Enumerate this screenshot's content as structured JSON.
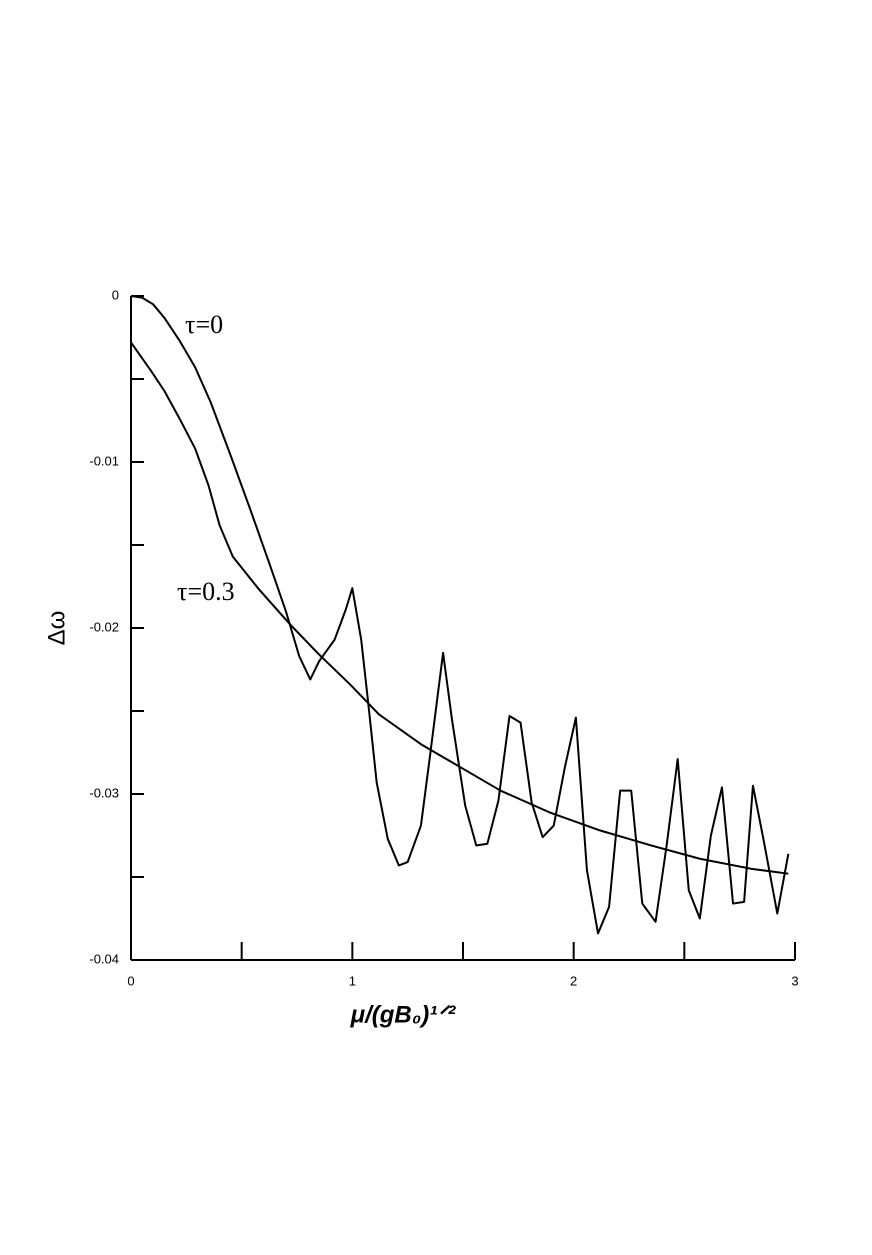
{
  "chart_data": {
    "type": "line",
    "xlabel": "μ/(gB₀)¹ᐟ²",
    "ylabel": "Δω",
    "xlim": [
      0,
      3
    ],
    "ylim": [
      -0.04,
      0
    ],
    "xticks": [
      0,
      1,
      2,
      3
    ],
    "xminorticks": [
      0.5,
      1.5,
      2.5
    ],
    "yticks": [
      0,
      -0.01,
      -0.02,
      -0.03,
      -0.04
    ],
    "yminorticks": [
      -0.005,
      -0.015,
      -0.025,
      -0.035
    ],
    "series": [
      {
        "name": "τ=0",
        "color": "#000000",
        "x": [
          0,
          0.05,
          0.1,
          0.15,
          0.22,
          0.29,
          0.36,
          0.45,
          0.54,
          0.63,
          0.7,
          0.76,
          0.81,
          0.85,
          0.92,
          0.97,
          1.0,
          1.04,
          1.07,
          1.11,
          1.16,
          1.21,
          1.25,
          1.31,
          1.35,
          1.41,
          1.45,
          1.51,
          1.56,
          1.61,
          1.66,
          1.71,
          1.76,
          1.81,
          1.86,
          1.91,
          1.96,
          2.01,
          2.06,
          2.11,
          2.16,
          2.21,
          2.26,
          2.31,
          2.37,
          2.42,
          2.47,
          2.52,
          2.57,
          2.62,
          2.67,
          2.72,
          2.77,
          2.81,
          2.86,
          2.92,
          2.97
        ],
        "values": [
          0,
          -0.0001,
          -0.0005,
          -0.0013,
          -0.0027,
          -0.0043,
          -0.0064,
          -0.0096,
          -0.0129,
          -0.0163,
          -0.019,
          -0.0217,
          -0.0231,
          -0.022,
          -0.0207,
          -0.0189,
          -0.0176,
          -0.0207,
          -0.0243,
          -0.0293,
          -0.0327,
          -0.0343,
          -0.0341,
          -0.0319,
          -0.0278,
          -0.0215,
          -0.0255,
          -0.0307,
          -0.0331,
          -0.033,
          -0.0304,
          -0.0253,
          -0.0257,
          -0.0305,
          -0.0326,
          -0.0319,
          -0.0284,
          -0.0254,
          -0.0346,
          -0.0384,
          -0.0368,
          -0.0298,
          -0.0298,
          -0.0366,
          -0.0377,
          -0.0331,
          -0.0279,
          -0.0358,
          -0.0375,
          -0.0325,
          -0.0296,
          -0.0366,
          -0.0365,
          -0.0295,
          -0.0329,
          -0.0372,
          -0.0336
        ]
      },
      {
        "name": "τ=0.3",
        "color": "#000000",
        "x": [
          0,
          0.09,
          0.15,
          0.22,
          0.29,
          0.35,
          0.4,
          0.46,
          0.58,
          0.72,
          0.85,
          0.99,
          1.12,
          1.31,
          1.49,
          1.67,
          1.89,
          2.12,
          2.35,
          2.57,
          2.8,
          2.97
        ],
        "values": [
          -0.0028,
          -0.0045,
          -0.0057,
          -0.0074,
          -0.0092,
          -0.0114,
          -0.0138,
          -0.0157,
          -0.0177,
          -0.0198,
          -0.0216,
          -0.0234,
          -0.0252,
          -0.027,
          -0.0284,
          -0.0298,
          -0.0311,
          -0.0322,
          -0.0331,
          -0.0339,
          -0.0345,
          -0.0348
        ]
      }
    ]
  }
}
